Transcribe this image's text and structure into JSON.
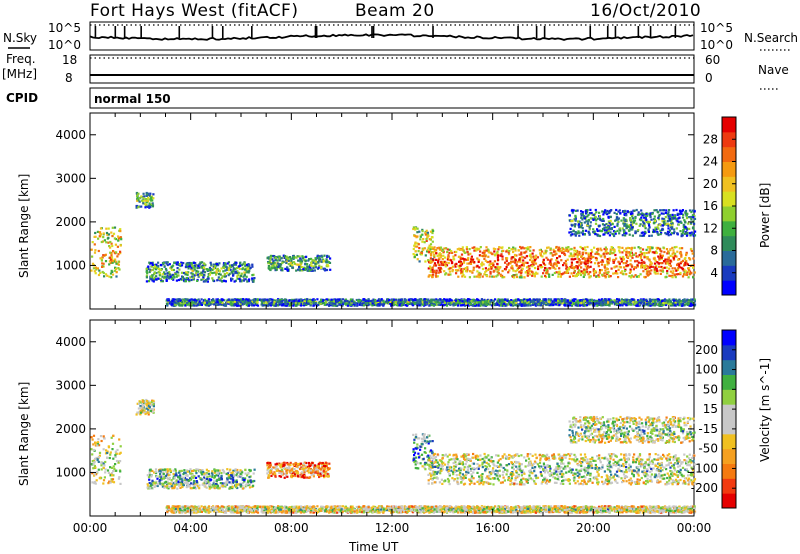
{
  "header": {
    "station": "Fort Hays West (fitACF)",
    "beam": "Beam 20",
    "date": "16/Oct/2010"
  },
  "top_panels": {
    "nsky_label": "N.Sky",
    "nsky_ticks": [
      "10^5",
      "10^0"
    ],
    "nsearch_label": "N.Search",
    "nsearch_ticks": [
      "10^5",
      "10^0"
    ],
    "freq_label": "Freq.",
    "freq_unit": "[MHz]",
    "freq_ticks": [
      "18",
      "8"
    ],
    "nave_label": "Nave",
    "nave_ticks": [
      "60",
      "0"
    ],
    "cpid_label": "CPID",
    "cpid_value": "normal 150"
  },
  "chart_data": [
    {
      "type": "heatmap",
      "name": "power",
      "ylabel": "Slant Range [km]",
      "ylim": [
        0,
        4500
      ],
      "yticks": [
        1000,
        2000,
        3000,
        4000
      ],
      "xlim": [
        0,
        24
      ],
      "colorbar": {
        "label": "Power [dB]",
        "range": [
          0,
          32
        ],
        "ticks": [
          "28",
          "24",
          "20",
          "16",
          "12",
          "8",
          "4"
        ],
        "colors": [
          "#0000ff",
          "#1a3bbf",
          "#2a6b9a",
          "#2f8b5a",
          "#3fb03f",
          "#8fcf2f",
          "#d8e020",
          "#f0c020",
          "#f59a10",
          "#f26a10",
          "#ee3a10",
          "#e50000"
        ]
      },
      "echo_regions": [
        {
          "t0": 0.0,
          "t1": 1.2,
          "r0": 750,
          "r1": 1900,
          "level": 0.55
        },
        {
          "t0": 1.8,
          "t1": 2.5,
          "r0": 2350,
          "r1": 2700,
          "level": 0.3
        },
        {
          "t0": 2.2,
          "t1": 6.5,
          "r0": 650,
          "r1": 1100,
          "level": 0.25
        },
        {
          "t0": 7.0,
          "t1": 9.5,
          "r0": 900,
          "r1": 1250,
          "level": 0.3
        },
        {
          "t0": 12.8,
          "t1": 13.6,
          "r0": 1100,
          "r1": 1900,
          "level": 0.5
        },
        {
          "t0": 13.4,
          "t1": 24.0,
          "r0": 750,
          "r1": 1450,
          "level": 0.7
        },
        {
          "t0": 3.0,
          "t1": 24.0,
          "r0": 100,
          "r1": 250,
          "level": 0.2
        },
        {
          "t0": 19.0,
          "t1": 24.0,
          "r0": 1700,
          "r1": 2300,
          "level": 0.2
        }
      ]
    },
    {
      "type": "heatmap",
      "name": "velocity",
      "ylabel": "Slant Range [km]",
      "xlabel": "Time UT",
      "ylim": [
        0,
        4500
      ],
      "yticks": [
        1000,
        2000,
        3000,
        4000
      ],
      "xlim": [
        0,
        24
      ],
      "xticks": [
        "00:00",
        "04:00",
        "08:00",
        "12:00",
        "16:00",
        "20:00",
        "00:00"
      ],
      "colorbar": {
        "label": "Velocity [m s^-1]",
        "range": [
          -250,
          250
        ],
        "ticks": [
          "200",
          "100",
          "50",
          "15",
          "-15",
          "-50",
          "-100",
          "-200"
        ],
        "colors": [
          "#e50000",
          "#f23a10",
          "#f57a10",
          "#f5a020",
          "#f0c020",
          "#c8c8c8",
          "#c8c8c8",
          "#90d040",
          "#40b040",
          "#2a7a9a",
          "#1a3bbf",
          "#0000ff"
        ]
      },
      "echo_regions": [
        {
          "t0": 0.0,
          "t1": 1.2,
          "r0": 750,
          "r1": 1900,
          "level": 0.45
        },
        {
          "t0": 1.8,
          "t1": 2.5,
          "r0": 2350,
          "r1": 2700,
          "level": 0.5
        },
        {
          "t0": 2.2,
          "t1": 6.5,
          "r0": 650,
          "r1": 1100,
          "level": 0.6
        },
        {
          "t0": 7.0,
          "t1": 9.5,
          "r0": 900,
          "r1": 1250,
          "level": 0.25
        },
        {
          "t0": 12.8,
          "t1": 13.6,
          "r0": 1100,
          "r1": 1900,
          "level": 0.7
        },
        {
          "t0": 13.4,
          "t1": 24.0,
          "r0": 750,
          "r1": 1450,
          "level": 0.5
        },
        {
          "t0": 3.0,
          "t1": 24.0,
          "r0": 100,
          "r1": 250,
          "level": 0.45
        },
        {
          "t0": 19.0,
          "t1": 24.0,
          "r0": 1700,
          "r1": 2300,
          "level": 0.5
        }
      ]
    }
  ]
}
